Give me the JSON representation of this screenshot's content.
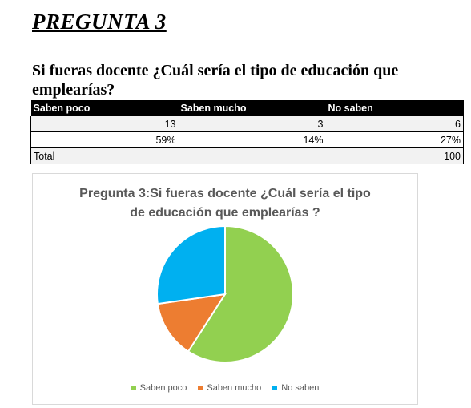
{
  "heading": "PREGUNTA 3",
  "question": "Si fueras docente ¿Cuál sería el tipo de educación que emplearías?",
  "table": {
    "headers": [
      "Saben poco",
      "Saben mucho",
      "No saben"
    ],
    "counts": [
      "13",
      "3",
      "6"
    ],
    "percents": [
      "59%",
      "14%",
      "27%"
    ],
    "total_label": "Total",
    "total_value": "100"
  },
  "chart_title_line1": "Pregunta 3:Si fueras docente ¿Cuál sería el tipo",
  "chart_title_line2": "de educación que emplearías ?",
  "chart_data": {
    "type": "pie",
    "title": "Pregunta 3:Si fueras docente ¿Cuál sería el tipo de educación que emplearías ?",
    "categories": [
      "Saben poco",
      "Saben mucho",
      "No saben"
    ],
    "values": [
      13,
      3,
      6
    ],
    "colors": [
      "#92d050",
      "#ed7d31",
      "#00b0f0"
    ],
    "legend_position": "bottom"
  }
}
